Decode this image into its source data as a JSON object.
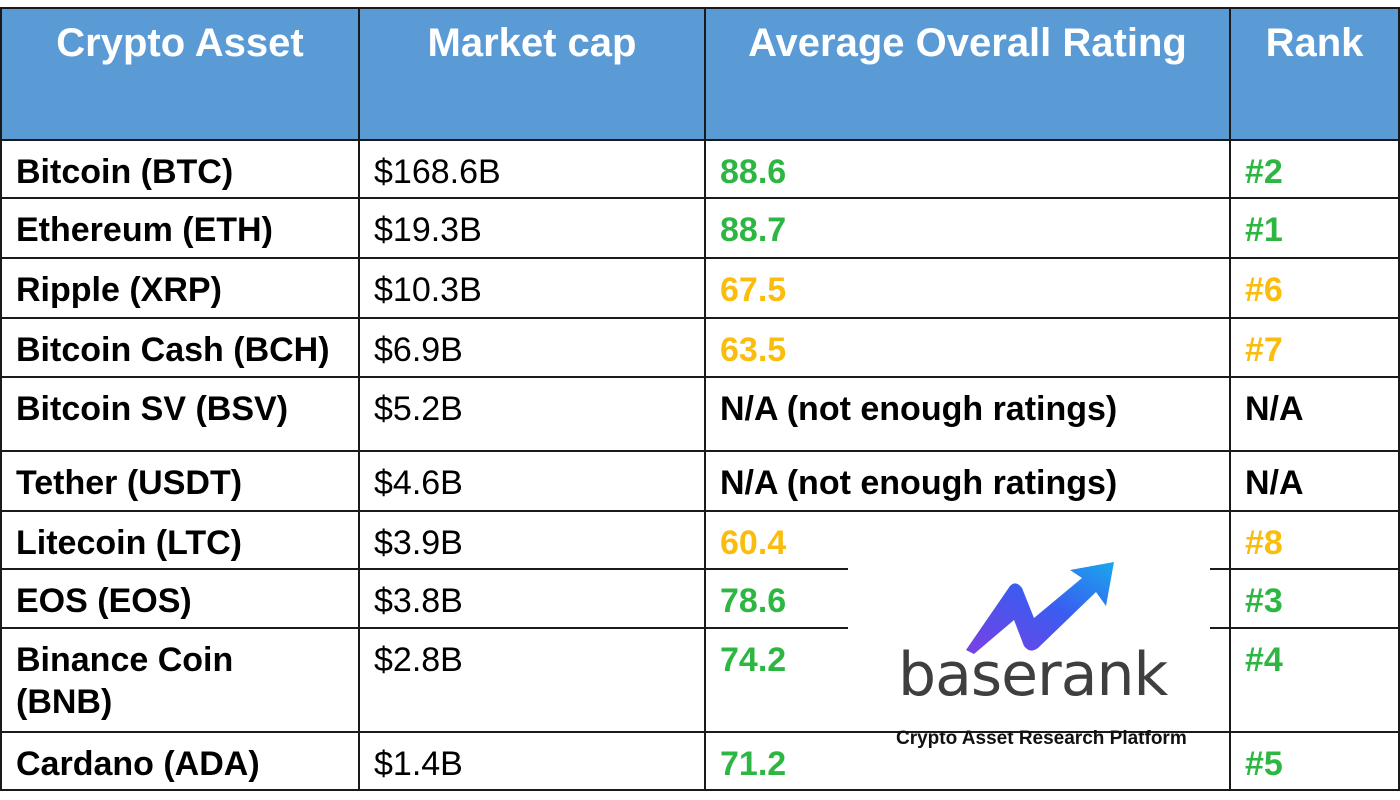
{
  "headers": [
    "Crypto Asset",
    "Market cap",
    "Average Overall Rating",
    "Rank"
  ],
  "rows": [
    {
      "asset": "Bitcoin (BTC)",
      "cap": "$168.6B",
      "rating": "88.6",
      "rank": "#2",
      "color": "green"
    },
    {
      "asset": "Ethereum (ETH)",
      "cap": "$19.3B",
      "rating": "88.7",
      "rank": "#1",
      "color": "green"
    },
    {
      "asset": "Ripple (XRP)",
      "cap": "$10.3B",
      "rating": "67.5",
      "rank": "#6",
      "color": "orange"
    },
    {
      "asset": "Bitcoin Cash (BCH)",
      "cap": "$6.9B",
      "rating": "63.5",
      "rank": "#7",
      "color": "orange"
    },
    {
      "asset": "Bitcoin SV (BSV)",
      "cap": "$5.2B",
      "rating": "N/A (not enough ratings)",
      "rank": "N/A",
      "color": "black"
    },
    {
      "asset": "Tether (USDT)",
      "cap": "$4.6B",
      "rating": "N/A (not enough ratings)",
      "rank": "N/A",
      "color": "black"
    },
    {
      "asset": "Litecoin (LTC)",
      "cap": "$3.9B",
      "rating": "60.4",
      "rank": "#8",
      "color": "orange"
    },
    {
      "asset": "EOS (EOS)",
      "cap": "$3.8B",
      "rating": "78.6",
      "rank": "#3",
      "color": "green"
    },
    {
      "asset": "Binance Coin (BNB)",
      "cap": "$2.8B",
      "rating": "74.2",
      "rank": "#4",
      "color": "green"
    },
    {
      "asset": "Cardano (ADA)",
      "cap": "$1.4B",
      "rating": "71.2",
      "rank": "#5",
      "color": "green"
    }
  ],
  "logo": {
    "wordmark": "baserank",
    "tagline": "Crypto Asset Research Platform"
  },
  "colors": {
    "header_bg": "#5b9bd5",
    "green": "#2db742",
    "orange": "#fbbd0d"
  }
}
